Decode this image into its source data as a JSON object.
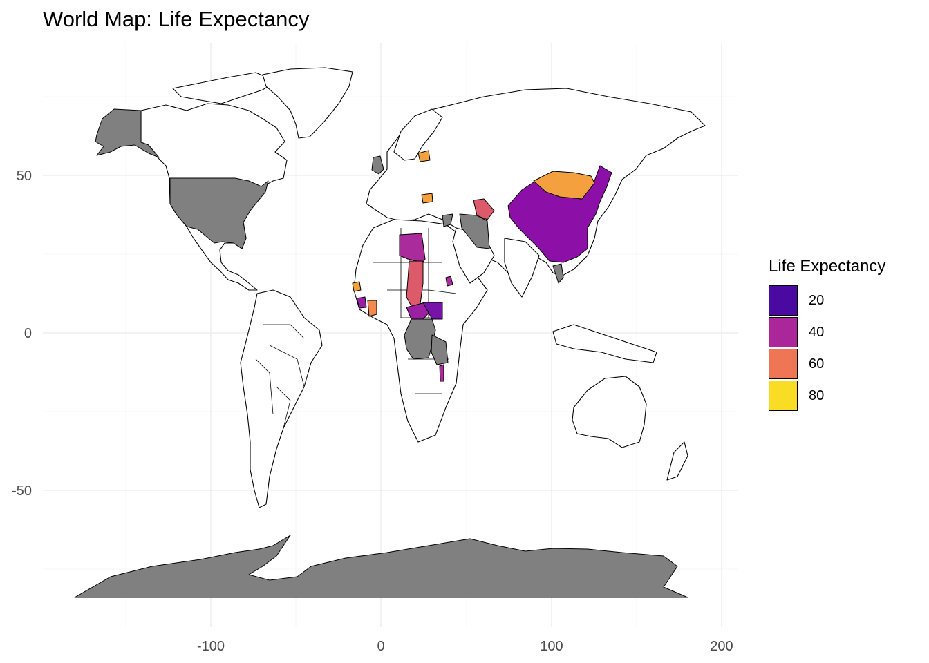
{
  "map": {
    "title": "World Map: Life Expectancy",
    "x_ticks": [
      "-100",
      "0",
      "100",
      "200"
    ],
    "y_ticks": [
      "50",
      "0",
      "-50"
    ],
    "missing_color": "#808080",
    "land_color": "#ffffff",
    "grid": true
  },
  "legend": {
    "title": "Life Expectancy",
    "position": "right",
    "entries": [
      {
        "label": "20",
        "color": "#4a0aa1"
      },
      {
        "label": "40",
        "color": "#aa2699"
      },
      {
        "label": "60",
        "color": "#ee7655"
      },
      {
        "label": "80",
        "color": "#f9dc24"
      }
    ]
  },
  "chart_data": {
    "type": "choropleth",
    "title": "World Map: Life Expectancy",
    "xlim": [
      -180,
      200
    ],
    "ylim": [
      -90,
      85
    ],
    "x_ticks": [
      -100,
      0,
      100,
      200
    ],
    "y_ticks": [
      50,
      0,
      -50
    ],
    "colorscale_ticks": [
      20,
      40,
      60,
      80
    ],
    "regions": [
      {
        "region": "China",
        "value": 35,
        "color": "#8c10a8"
      },
      {
        "region": "Mongolia",
        "value": 70,
        "color": "#f4a03f"
      },
      {
        "region": "Libya",
        "value": 40,
        "color": "#aa2b9c"
      },
      {
        "region": "Chad",
        "value": 55,
        "color": "#dd5a6b"
      },
      {
        "region": "Central African Republic",
        "value": 35,
        "color": "#9c20a2"
      },
      {
        "region": "South Sudan",
        "value": 25,
        "color": "#7713a9"
      },
      {
        "region": "Sierra Leone",
        "value": 40,
        "color": "#9a1ea4"
      },
      {
        "region": "Guinea",
        "value": 70,
        "color": "#f4a03f"
      },
      {
        "region": "Ghana",
        "value": 65,
        "color": "#f08a50"
      },
      {
        "region": "Turkmenistan",
        "value": 55,
        "color": "#dd5a6b"
      },
      {
        "region": "Latvia",
        "value": 70,
        "color": "#f4a03f"
      },
      {
        "region": "Romania",
        "value": 70,
        "color": "#f4a03f"
      },
      {
        "region": "Malawi",
        "value": 40,
        "color": "#aa2b9c"
      },
      {
        "region": "Eritrea",
        "value": 40,
        "color": "#aa2b9c"
      }
    ]
  }
}
